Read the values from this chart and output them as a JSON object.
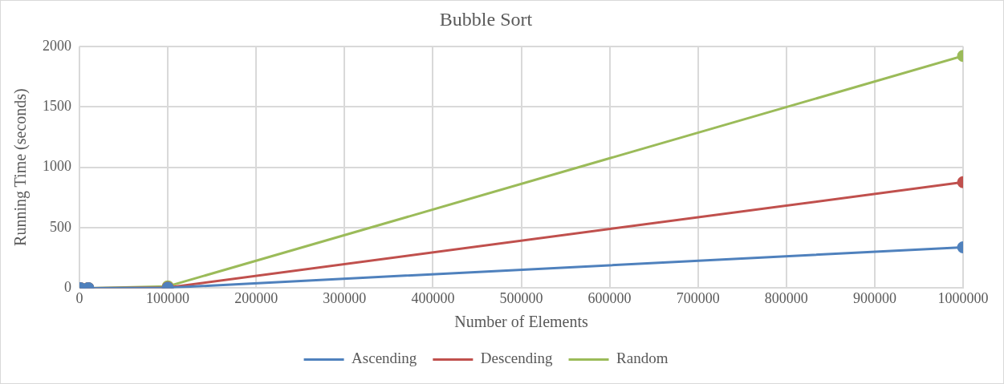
{
  "chart_data": {
    "type": "line",
    "title": "Bubble Sort",
    "xlabel": "Number of Elements",
    "ylabel": "Running Time (seconds)",
    "x": [
      1000,
      10000,
      100000,
      1000000
    ],
    "series": [
      {
        "name": "Ascending",
        "color": "#4f81bd",
        "values": [
          0,
          0,
          3,
          338
        ]
      },
      {
        "name": "Descending",
        "color": "#c0504d",
        "values": [
          0,
          0,
          5,
          876
        ]
      },
      {
        "name": "Random",
        "color": "#9bbb59",
        "values": [
          0,
          0,
          15,
          1921
        ]
      }
    ],
    "xlim": [
      0,
      1000000
    ],
    "xticks": [
      0,
      100000,
      200000,
      300000,
      400000,
      500000,
      600000,
      700000,
      800000,
      900000,
      1000000
    ],
    "ylim": [
      0,
      2000
    ],
    "yticks": [
      0,
      500,
      1000,
      1500,
      2000
    ],
    "grid": true,
    "legend": "bottom",
    "marker": "circle",
    "line_style": "solid"
  }
}
